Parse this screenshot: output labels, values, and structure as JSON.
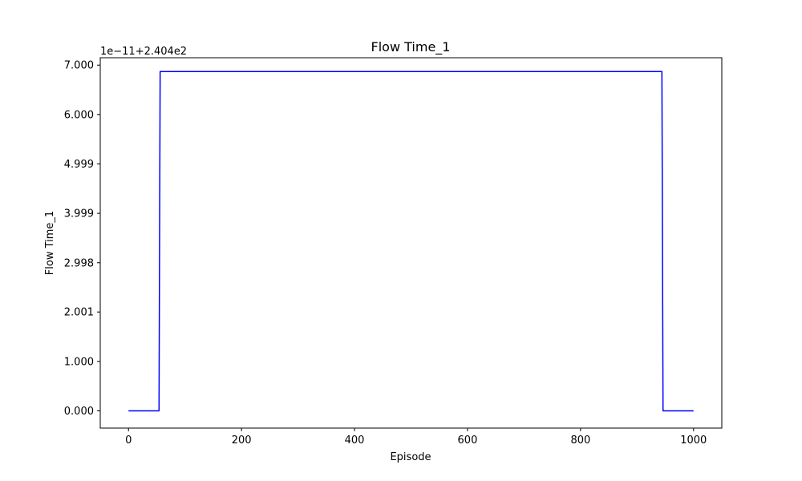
{
  "chart_data": {
    "type": "line",
    "title": "Flow Time_1",
    "xlabel": "Episode",
    "ylabel": "Flow Time_1",
    "offset_label": "1e−11+2.404e2",
    "xlim": [
      -50,
      1050
    ],
    "ylim": [
      -0.35,
      7.15
    ],
    "x_ticks": [
      0,
      200,
      400,
      600,
      800,
      1000
    ],
    "x_tick_labels": [
      "0",
      "200",
      "400",
      "600",
      "800",
      "1000"
    ],
    "y_ticks": [
      0.0,
      1.0,
      2.001,
      2.998,
      3.999,
      4.999,
      6.0,
      7.0
    ],
    "y_tick_labels": [
      "0.000",
      "1.000",
      "2.001",
      "2.998",
      "3.999",
      "4.999",
      "6.000",
      "7.000"
    ],
    "grid": false,
    "series": [
      {
        "color": "#0000ff",
        "x": [
          0,
          35,
          54,
          56,
          944,
          946,
          1000
        ],
        "y": [
          0.0,
          0.0,
          0.0,
          6.87,
          6.87,
          0.0,
          0.0
        ]
      }
    ]
  }
}
